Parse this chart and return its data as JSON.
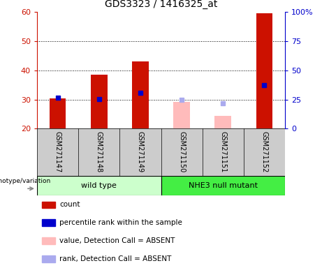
{
  "title": "GDS3323 / 1416325_at",
  "samples": [
    "GSM271147",
    "GSM271148",
    "GSM271149",
    "GSM271150",
    "GSM271151",
    "GSM271152"
  ],
  "bar_bottom": 20,
  "red_bar_tops": [
    30.3,
    38.5,
    43.0,
    null,
    null,
    59.5
  ],
  "blue_squares": [
    30.5,
    30.1,
    32.2,
    null,
    null,
    35.0
  ],
  "pink_bar_tops": [
    null,
    null,
    null,
    29.2,
    24.5,
    null
  ],
  "lavender_squares": [
    null,
    null,
    null,
    30.0,
    28.7,
    null
  ],
  "ylim_left": [
    20,
    60
  ],
  "ylim_right": [
    0,
    100
  ],
  "yticks_left": [
    20,
    30,
    40,
    50,
    60
  ],
  "yticks_right": [
    0,
    25,
    50,
    75,
    100
  ],
  "ytick_labels_right": [
    "0",
    "25",
    "50",
    "75",
    "100%"
  ],
  "bar_color_red": "#CC1100",
  "bar_color_pink": "#FFBBBB",
  "square_color_blue": "#0000CC",
  "square_color_lavender": "#AAAAEE",
  "bg_group_wt": "#CCFFCC",
  "bg_group_nhe3": "#44EE44",
  "bg_sample": "#CCCCCC",
  "legend_items": [
    {
      "label": "count",
      "color": "#CC1100"
    },
    {
      "label": "percentile rank within the sample",
      "color": "#0000CC"
    },
    {
      "label": "value, Detection Call = ABSENT",
      "color": "#FFBBBB"
    },
    {
      "label": "rank, Detection Call = ABSENT",
      "color": "#AAAAEE"
    }
  ]
}
